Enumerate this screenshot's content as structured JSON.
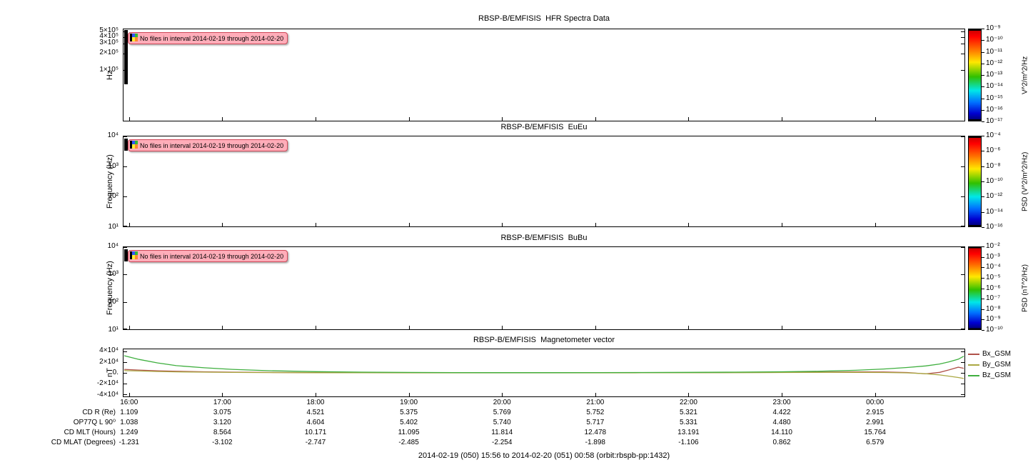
{
  "app": {
    "caption": "2014-02-19 (050) 15:56 to 2014-02-20 (051) 00:58 (orbit:rbspb-pp:1432)"
  },
  "warning": {
    "text": "No files in interval 2014-02-19 through 2014-02-20",
    "icon": "dataset-thumbnail-icon"
  },
  "panels": [
    {
      "id": "hfr",
      "title": "RBSP-B/EMFISIS  HFR Spectra Data",
      "ylabel": "Hz",
      "yticks": [
        {
          "label": "5×10⁵",
          "pos": 2.4
        },
        {
          "label": "4×10⁵",
          "pos": 8.4
        },
        {
          "label": "3×10⁵",
          "pos": 15.7
        },
        {
          "label": "2×10⁵",
          "pos": 26.5
        },
        {
          "label": "1×10⁵",
          "pos": 44.6
        }
      ],
      "colorbar": {
        "title": "V^2/m^2/Hz",
        "ticks": [
          "10⁻⁹",
          "10⁻¹⁰",
          "10⁻¹¹",
          "10⁻¹²",
          "10⁻¹³",
          "10⁻¹⁴",
          "10⁻¹⁵",
          "10⁻¹⁶",
          "10⁻¹⁷"
        ]
      }
    },
    {
      "id": "eueu",
      "title": "RBSP-B/EMFISIS  EuEu",
      "ylabel": "Frequency (Hz)",
      "yticks": [
        {
          "label": "10⁴",
          "pos": 0
        },
        {
          "label": "10³",
          "pos": 33.3
        },
        {
          "label": "10²",
          "pos": 66.7
        },
        {
          "label": "10¹",
          "pos": 100
        }
      ],
      "colorbar": {
        "title": "PSD (V^2/m^2/Hz)",
        "ticks": [
          "10⁻⁴",
          "10⁻⁶",
          "10⁻⁸",
          "10⁻¹⁰",
          "10⁻¹²",
          "10⁻¹⁴",
          "10⁻¹⁶"
        ]
      }
    },
    {
      "id": "bubu",
      "title": "RBSP-B/EMFISIS  BuBu",
      "ylabel": "Frequency (Hz)",
      "yticks": [
        {
          "label": "10⁴",
          "pos": 0
        },
        {
          "label": "10³",
          "pos": 33.3
        },
        {
          "label": "10²",
          "pos": 66.7
        },
        {
          "label": "10¹",
          "pos": 100
        }
      ],
      "colorbar": {
        "title": "PSD (nT^2/Hz)",
        "ticks": [
          "10⁻²",
          "10⁻³",
          "10⁻⁴",
          "10⁻⁵",
          "10⁻⁶",
          "10⁻⁷",
          "10⁻⁸",
          "10⁻⁹",
          "10⁻¹⁰"
        ]
      }
    }
  ],
  "mag": {
    "title": "RBSP-B/EMFISIS  Magnetometer vector",
    "ylabel": "nT",
    "yticks": [
      {
        "label": "4×10⁴",
        "pos": 4.5
      },
      {
        "label": "2×10⁴",
        "pos": 27.3
      },
      {
        "label": "0.",
        "pos": 50
      },
      {
        "label": "-2×10⁴",
        "pos": 72.7
      },
      {
        "label": "-4×10⁴",
        "pos": 95.5
      }
    ]
  },
  "time_axis": {
    "start_hour": 15.933,
    "end_hour": 24.967,
    "ticks": [
      {
        "label": "16:00",
        "hour": 16
      },
      {
        "label": "17:00",
        "hour": 17
      },
      {
        "label": "18:00",
        "hour": 18
      },
      {
        "label": "19:00",
        "hour": 19
      },
      {
        "label": "20:00",
        "hour": 20
      },
      {
        "label": "21:00",
        "hour": 21
      },
      {
        "label": "22:00",
        "hour": 22
      },
      {
        "label": "23:00",
        "hour": 23
      },
      {
        "label": "00:00",
        "hour": 24
      }
    ]
  },
  "chart_data": [
    {
      "type": "heatmap",
      "title": "RBSP-B/EMFISIS  HFR Spectra Data",
      "ylabel": "Hz",
      "yscale": "log",
      "ylim": [
        12000,
        550000
      ],
      "colorbar_label": "V^2/m^2/Hz",
      "colorbar_range_log10": [
        -17,
        -9
      ],
      "annotation": "No files in interval 2014-02-19 through 2014-02-20",
      "values": []
    },
    {
      "type": "heatmap",
      "title": "RBSP-B/EMFISIS  EuEu",
      "ylabel": "Frequency (Hz)",
      "yscale": "log",
      "ylim": [
        10,
        10000
      ],
      "colorbar_label": "PSD (V^2/m^2/Hz)",
      "colorbar_range_log10": [
        -16,
        -4
      ],
      "annotation": "No files in interval 2014-02-19 through 2014-02-20",
      "values": []
    },
    {
      "type": "heatmap",
      "title": "RBSP-B/EMFISIS  BuBu",
      "ylabel": "Frequency (Hz)",
      "yscale": "log",
      "ylim": [
        10,
        10000
      ],
      "colorbar_label": "PSD (nT^2/Hz)",
      "colorbar_range_log10": [
        -10,
        -2
      ],
      "annotation": "No files in interval 2014-02-19 through 2014-02-20",
      "values": []
    },
    {
      "type": "line",
      "title": "RBSP-B/EMFISIS  Magnetometer vector",
      "ylabel": "nT",
      "ylim": [
        -44000,
        44000
      ],
      "x_hours": [
        15.94,
        16.1,
        16.3,
        16.5,
        16.8,
        17.1,
        17.5,
        18.0,
        18.5,
        19.0,
        19.5,
        20.0,
        20.5,
        21.0,
        21.5,
        22.0,
        22.5,
        23.0,
        23.4,
        23.8,
        24.1,
        24.35,
        24.55,
        24.7,
        24.8,
        24.9,
        24.96
      ],
      "series": [
        {
          "name": "Bx_GSM",
          "color": "#b0524a",
          "values": [
            6500,
            5200,
            3900,
            2900,
            2000,
            1300,
            800,
            450,
            250,
            150,
            100,
            100,
            100,
            150,
            250,
            400,
            600,
            900,
            1300,
            1700,
            1600,
            700,
            -1800,
            1000,
            5500,
            10500,
            8500
          ]
        },
        {
          "name": "By_GSM",
          "color": "#aaa843",
          "values": [
            4200,
            3400,
            2600,
            1900,
            1300,
            850,
            500,
            280,
            150,
            60,
            0,
            0,
            0,
            60,
            150,
            280,
            450,
            650,
            850,
            950,
            700,
            0,
            -1600,
            -3800,
            -6200,
            -8600,
            -10500
          ]
        },
        {
          "name": "Bz_GSM",
          "color": "#3faf3f",
          "values": [
            32000,
            25000,
            18500,
            13500,
            9500,
            6500,
            4000,
            2200,
            1300,
            800,
            550,
            450,
            450,
            500,
            650,
            900,
            1300,
            2000,
            3000,
            4800,
            7200,
            10000,
            13000,
            16500,
            20500,
            25500,
            31000
          ]
        }
      ]
    },
    {
      "type": "table",
      "columns": [
        "16:00",
        "17:00",
        "18:00",
        "19:00",
        "20:00",
        "21:00",
        "22:00",
        "23:00",
        "00:00"
      ],
      "rows": [
        {
          "label": "CD R (Re)",
          "values": [
            "1.109",
            "3.075",
            "4.521",
            "5.375",
            "5.769",
            "5.752",
            "5.321",
            "4.422",
            "2.915"
          ]
        },
        {
          "label": "OP77Q L 90⁰",
          "values": [
            "1.038",
            "3.120",
            "4.604",
            "5.402",
            "5.740",
            "5.717",
            "5.331",
            "4.480",
            "2.991"
          ]
        },
        {
          "label": "CD MLT (Hours)",
          "values": [
            "1.249",
            "8.564",
            "10.171",
            "11.095",
            "11.814",
            "12.478",
            "13.191",
            "14.110",
            "15.764"
          ]
        },
        {
          "label": "CD MLAT (Degrees)",
          "values": [
            "-1.231",
            "-3.102",
            "-2.747",
            "-2.485",
            "-2.254",
            "-1.898",
            "-1.106",
            "0.862",
            "6.579"
          ]
        }
      ]
    }
  ]
}
